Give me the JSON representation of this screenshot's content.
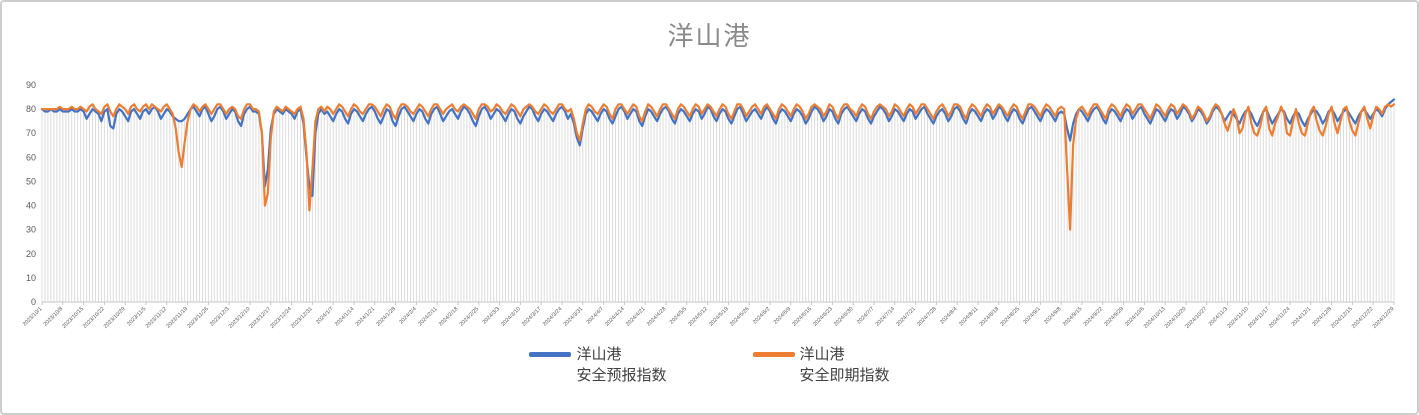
{
  "chart_data": {
    "type": "line",
    "title": "洋山港",
    "x_start": "2023/10/1",
    "x_end": "2024/12/29",
    "x_interval": "daily",
    "x_tick_interval": "weekly",
    "x_tick_labels": [
      "2023/10/1",
      "2023/10/8",
      "2023/10/15",
      "2023/10/22",
      "2023/10/29",
      "2023/11/5",
      "2023/11/12",
      "2023/11/19",
      "2023/11/26",
      "2023/12/3",
      "2023/12/10",
      "2023/12/17",
      "2023/12/24",
      "2023/12/31",
      "2024/1/7",
      "2024/1/14",
      "2024/1/21",
      "2024/1/28",
      "2024/2/4",
      "2024/2/11",
      "2024/2/18",
      "2024/2/25",
      "2024/3/3",
      "2024/3/10",
      "2024/3/17",
      "2024/3/24",
      "2024/3/31",
      "2024/4/7",
      "2024/4/14",
      "2024/4/21",
      "2024/4/28",
      "2024/5/5",
      "2024/5/12",
      "2024/5/19",
      "2024/5/26",
      "2024/6/2",
      "2024/6/9",
      "2024/6/16",
      "2024/6/23",
      "2024/6/30",
      "2024/7/7",
      "2024/7/14",
      "2024/7/21",
      "2024/7/28",
      "2024/8/4",
      "2024/8/11",
      "2024/8/18",
      "2024/8/25",
      "2024/9/1",
      "2024/9/8",
      "2024/9/15",
      "2024/9/22",
      "2024/9/29",
      "2024/10/6",
      "2024/10/13",
      "2024/10/20",
      "2024/10/27",
      "2024/11/3",
      "2024/11/10",
      "2024/11/17",
      "2024/11/24",
      "2024/12/1",
      "2024/12/8",
      "2024/12/15",
      "2024/12/22",
      "2024/12/29"
    ],
    "ylim": [
      0,
      90
    ],
    "y_ticks": [
      0,
      10,
      20,
      30,
      40,
      50,
      60,
      70,
      80,
      90
    ],
    "grid": "vertical drop lines only, no horizontal gridlines",
    "legend_position": "bottom-center",
    "colors": {
      "dropline": "#dcdcdc",
      "axis": "#c6c6c6",
      "tick_label": "#595959",
      "title": "#8a8a8a"
    },
    "series": [
      {
        "name": "洋山港 安全预报指数",
        "color": "#4472C4",
        "values": [
          80,
          79,
          79,
          80,
          79,
          79,
          80,
          79,
          79,
          79,
          80,
          79,
          79,
          80,
          79,
          76,
          78,
          80,
          79,
          78,
          75,
          79,
          80,
          73,
          72,
          78,
          80,
          79,
          77,
          75,
          79,
          80,
          78,
          76,
          79,
          80,
          78,
          80,
          81,
          79,
          76,
          78,
          80,
          79,
          77,
          76,
          75,
          75,
          76,
          78,
          80,
          81,
          79,
          77,
          80,
          81,
          78,
          75,
          77,
          80,
          81,
          79,
          76,
          78,
          80,
          79,
          75,
          73,
          78,
          80,
          81,
          79,
          79,
          78,
          70,
          48,
          55,
          72,
          78,
          80,
          79,
          78,
          80,
          79,
          78,
          76,
          79,
          80,
          74,
          60,
          48,
          44,
          70,
          78,
          80,
          78,
          79,
          77,
          75,
          78,
          80,
          79,
          76,
          74,
          78,
          80,
          79,
          77,
          75,
          78,
          80,
          81,
          79,
          76,
          74,
          77,
          80,
          79,
          75,
          73,
          77,
          80,
          81,
          79,
          77,
          75,
          78,
          80,
          79,
          76,
          74,
          78,
          80,
          81,
          78,
          75,
          77,
          79,
          80,
          78,
          76,
          79,
          81,
          80,
          78,
          75,
          73,
          77,
          80,
          81,
          79,
          76,
          78,
          80,
          79,
          77,
          75,
          78,
          80,
          79,
          76,
          74,
          77,
          79,
          81,
          80,
          77,
          75,
          78,
          80,
          79,
          77,
          75,
          78,
          80,
          81,
          79,
          76,
          78,
          74,
          68,
          65,
          72,
          78,
          80,
          79,
          77,
          75,
          78,
          80,
          79,
          76,
          74,
          77,
          80,
          81,
          79,
          76,
          78,
          80,
          79,
          75,
          73,
          77,
          80,
          79,
          77,
          75,
          78,
          80,
          81,
          79,
          76,
          74,
          78,
          80,
          79,
          77,
          75,
          78,
          80,
          79,
          76,
          78,
          81,
          80,
          77,
          75,
          78,
          80,
          79,
          76,
          74,
          77,
          80,
          81,
          78,
          75,
          77,
          79,
          80,
          78,
          76,
          79,
          81,
          79,
          76,
          74,
          78,
          80,
          79,
          77,
          75,
          78,
          80,
          79,
          77,
          74,
          76,
          79,
          81,
          80,
          78,
          75,
          77,
          80,
          79,
          76,
          74,
          78,
          80,
          81,
          79,
          77,
          75,
          78,
          80,
          79,
          76,
          74,
          77,
          79,
          81,
          80,
          78,
          75,
          77,
          80,
          79,
          77,
          75,
          78,
          80,
          79,
          76,
          78,
          80,
          81,
          78,
          76,
          74,
          77,
          79,
          80,
          78,
          75,
          77,
          80,
          81,
          79,
          76,
          74,
          78,
          80,
          79,
          77,
          75,
          78,
          80,
          79,
          76,
          78,
          81,
          80,
          77,
          75,
          78,
          80,
          79,
          76,
          74,
          77,
          80,
          81,
          79,
          77,
          75,
          78,
          80,
          79,
          77,
          75,
          78,
          79,
          78,
          72,
          67,
          74,
          78,
          80,
          79,
          77,
          75,
          78,
          80,
          81,
          79,
          76,
          74,
          78,
          80,
          79,
          77,
          75,
          78,
          80,
          79,
          76,
          78,
          80,
          81,
          78,
          76,
          74,
          77,
          80,
          79,
          77,
          75,
          78,
          80,
          79,
          76,
          78,
          81,
          80,
          78,
          75,
          77,
          80,
          79,
          77,
          74,
          76,
          79,
          81,
          80,
          78,
          75,
          77,
          79,
          78,
          76,
          74,
          77,
          79,
          80,
          78,
          75,
          73,
          76,
          79,
          80,
          77,
          74,
          76,
          78,
          80,
          79,
          76,
          74,
          77,
          79,
          78,
          75,
          73,
          76,
          78,
          80,
          79,
          77,
          74,
          76,
          79,
          80,
          78,
          75,
          77,
          79,
          80,
          78,
          76,
          74,
          77,
          79,
          80,
          78,
          76,
          78,
          80,
          79,
          77,
          80,
          82,
          83,
          84
        ]
      },
      {
        "name": "洋山港 安全即期指数",
        "color": "#ED7D31",
        "values": [
          80,
          80,
          80,
          80,
          80,
          80,
          81,
          80,
          80,
          80,
          81,
          80,
          80,
          81,
          80,
          79,
          81,
          82,
          80,
          79,
          78,
          81,
          82,
          79,
          77,
          80,
          82,
          81,
          80,
          78,
          81,
          82,
          80,
          79,
          81,
          82,
          80,
          82,
          81,
          80,
          79,
          81,
          82,
          80,
          78,
          72,
          62,
          56,
          66,
          75,
          80,
          82,
          81,
          79,
          81,
          82,
          80,
          78,
          80,
          82,
          82,
          80,
          78,
          80,
          81,
          80,
          77,
          76,
          80,
          82,
          82,
          80,
          80,
          79,
          70,
          40,
          45,
          68,
          79,
          81,
          80,
          79,
          81,
          80,
          79,
          78,
          80,
          81,
          76,
          62,
          38,
          55,
          75,
          80,
          81,
          79,
          81,
          80,
          78,
          80,
          82,
          81,
          79,
          77,
          80,
          82,
          81,
          79,
          78,
          80,
          82,
          82,
          81,
          79,
          77,
          80,
          82,
          81,
          78,
          76,
          80,
          82,
          82,
          81,
          79,
          78,
          80,
          82,
          81,
          79,
          77,
          80,
          82,
          82,
          80,
          78,
          80,
          81,
          82,
          80,
          79,
          81,
          82,
          81,
          80,
          78,
          76,
          80,
          82,
          82,
          81,
          79,
          80,
          82,
          81,
          79,
          78,
          80,
          82,
          81,
          79,
          77,
          80,
          81,
          82,
          81,
          79,
          78,
          80,
          82,
          81,
          79,
          78,
          80,
          82,
          82,
          80,
          79,
          80,
          76,
          70,
          67,
          74,
          80,
          82,
          81,
          79,
          78,
          80,
          82,
          81,
          78,
          76,
          80,
          82,
          82,
          80,
          78,
          80,
          82,
          81,
          77,
          75,
          79,
          82,
          81,
          79,
          77,
          80,
          82,
          82,
          80,
          78,
          76,
          80,
          82,
          81,
          79,
          77,
          80,
          82,
          81,
          78,
          80,
          82,
          81,
          79,
          77,
          80,
          82,
          81,
          78,
          76,
          79,
          82,
          82,
          80,
          77,
          79,
          81,
          82,
          80,
          78,
          81,
          82,
          80,
          78,
          76,
          80,
          82,
          81,
          79,
          77,
          80,
          82,
          81,
          79,
          76,
          78,
          81,
          82,
          81,
          80,
          77,
          79,
          82,
          81,
          78,
          76,
          80,
          82,
          82,
          80,
          79,
          77,
          80,
          82,
          81,
          78,
          76,
          79,
          81,
          82,
          81,
          80,
          77,
          79,
          82,
          81,
          79,
          77,
          80,
          82,
          81,
          78,
          80,
          82,
          82,
          80,
          78,
          76,
          79,
          81,
          82,
          80,
          77,
          79,
          82,
          82,
          81,
          78,
          76,
          80,
          82,
          81,
          79,
          77,
          80,
          82,
          81,
          78,
          80,
          82,
          81,
          79,
          77,
          80,
          82,
          81,
          78,
          76,
          79,
          82,
          82,
          81,
          79,
          77,
          80,
          82,
          81,
          79,
          77,
          80,
          81,
          80,
          55,
          30,
          65,
          76,
          80,
          81,
          79,
          77,
          80,
          82,
          82,
          80,
          78,
          76,
          80,
          82,
          81,
          79,
          77,
          80,
          82,
          81,
          78,
          80,
          82,
          82,
          80,
          78,
          76,
          79,
          82,
          81,
          79,
          77,
          80,
          82,
          81,
          78,
          80,
          82,
          81,
          79,
          76,
          78,
          81,
          80,
          78,
          75,
          77,
          80,
          82,
          81,
          78,
          74,
          71,
          75,
          80,
          77,
          70,
          72,
          78,
          81,
          74,
          70,
          69,
          73,
          79,
          81,
          72,
          69,
          74,
          77,
          81,
          78,
          70,
          69,
          75,
          80,
          74,
          70,
          69,
          74,
          79,
          81,
          75,
          71,
          69,
          73,
          78,
          81,
          74,
          70,
          75,
          80,
          81,
          75,
          71,
          69,
          74,
          79,
          81,
          76,
          72,
          77,
          81,
          80,
          78,
          81,
          82,
          81,
          82
        ]
      }
    ]
  },
  "legend": {
    "items": [
      {
        "line1": "洋山港",
        "line2": "安全预报指数",
        "color": "#4472C4"
      },
      {
        "line1": "洋山港",
        "line2": "安全即期指数",
        "color": "#ED7D31"
      }
    ]
  }
}
